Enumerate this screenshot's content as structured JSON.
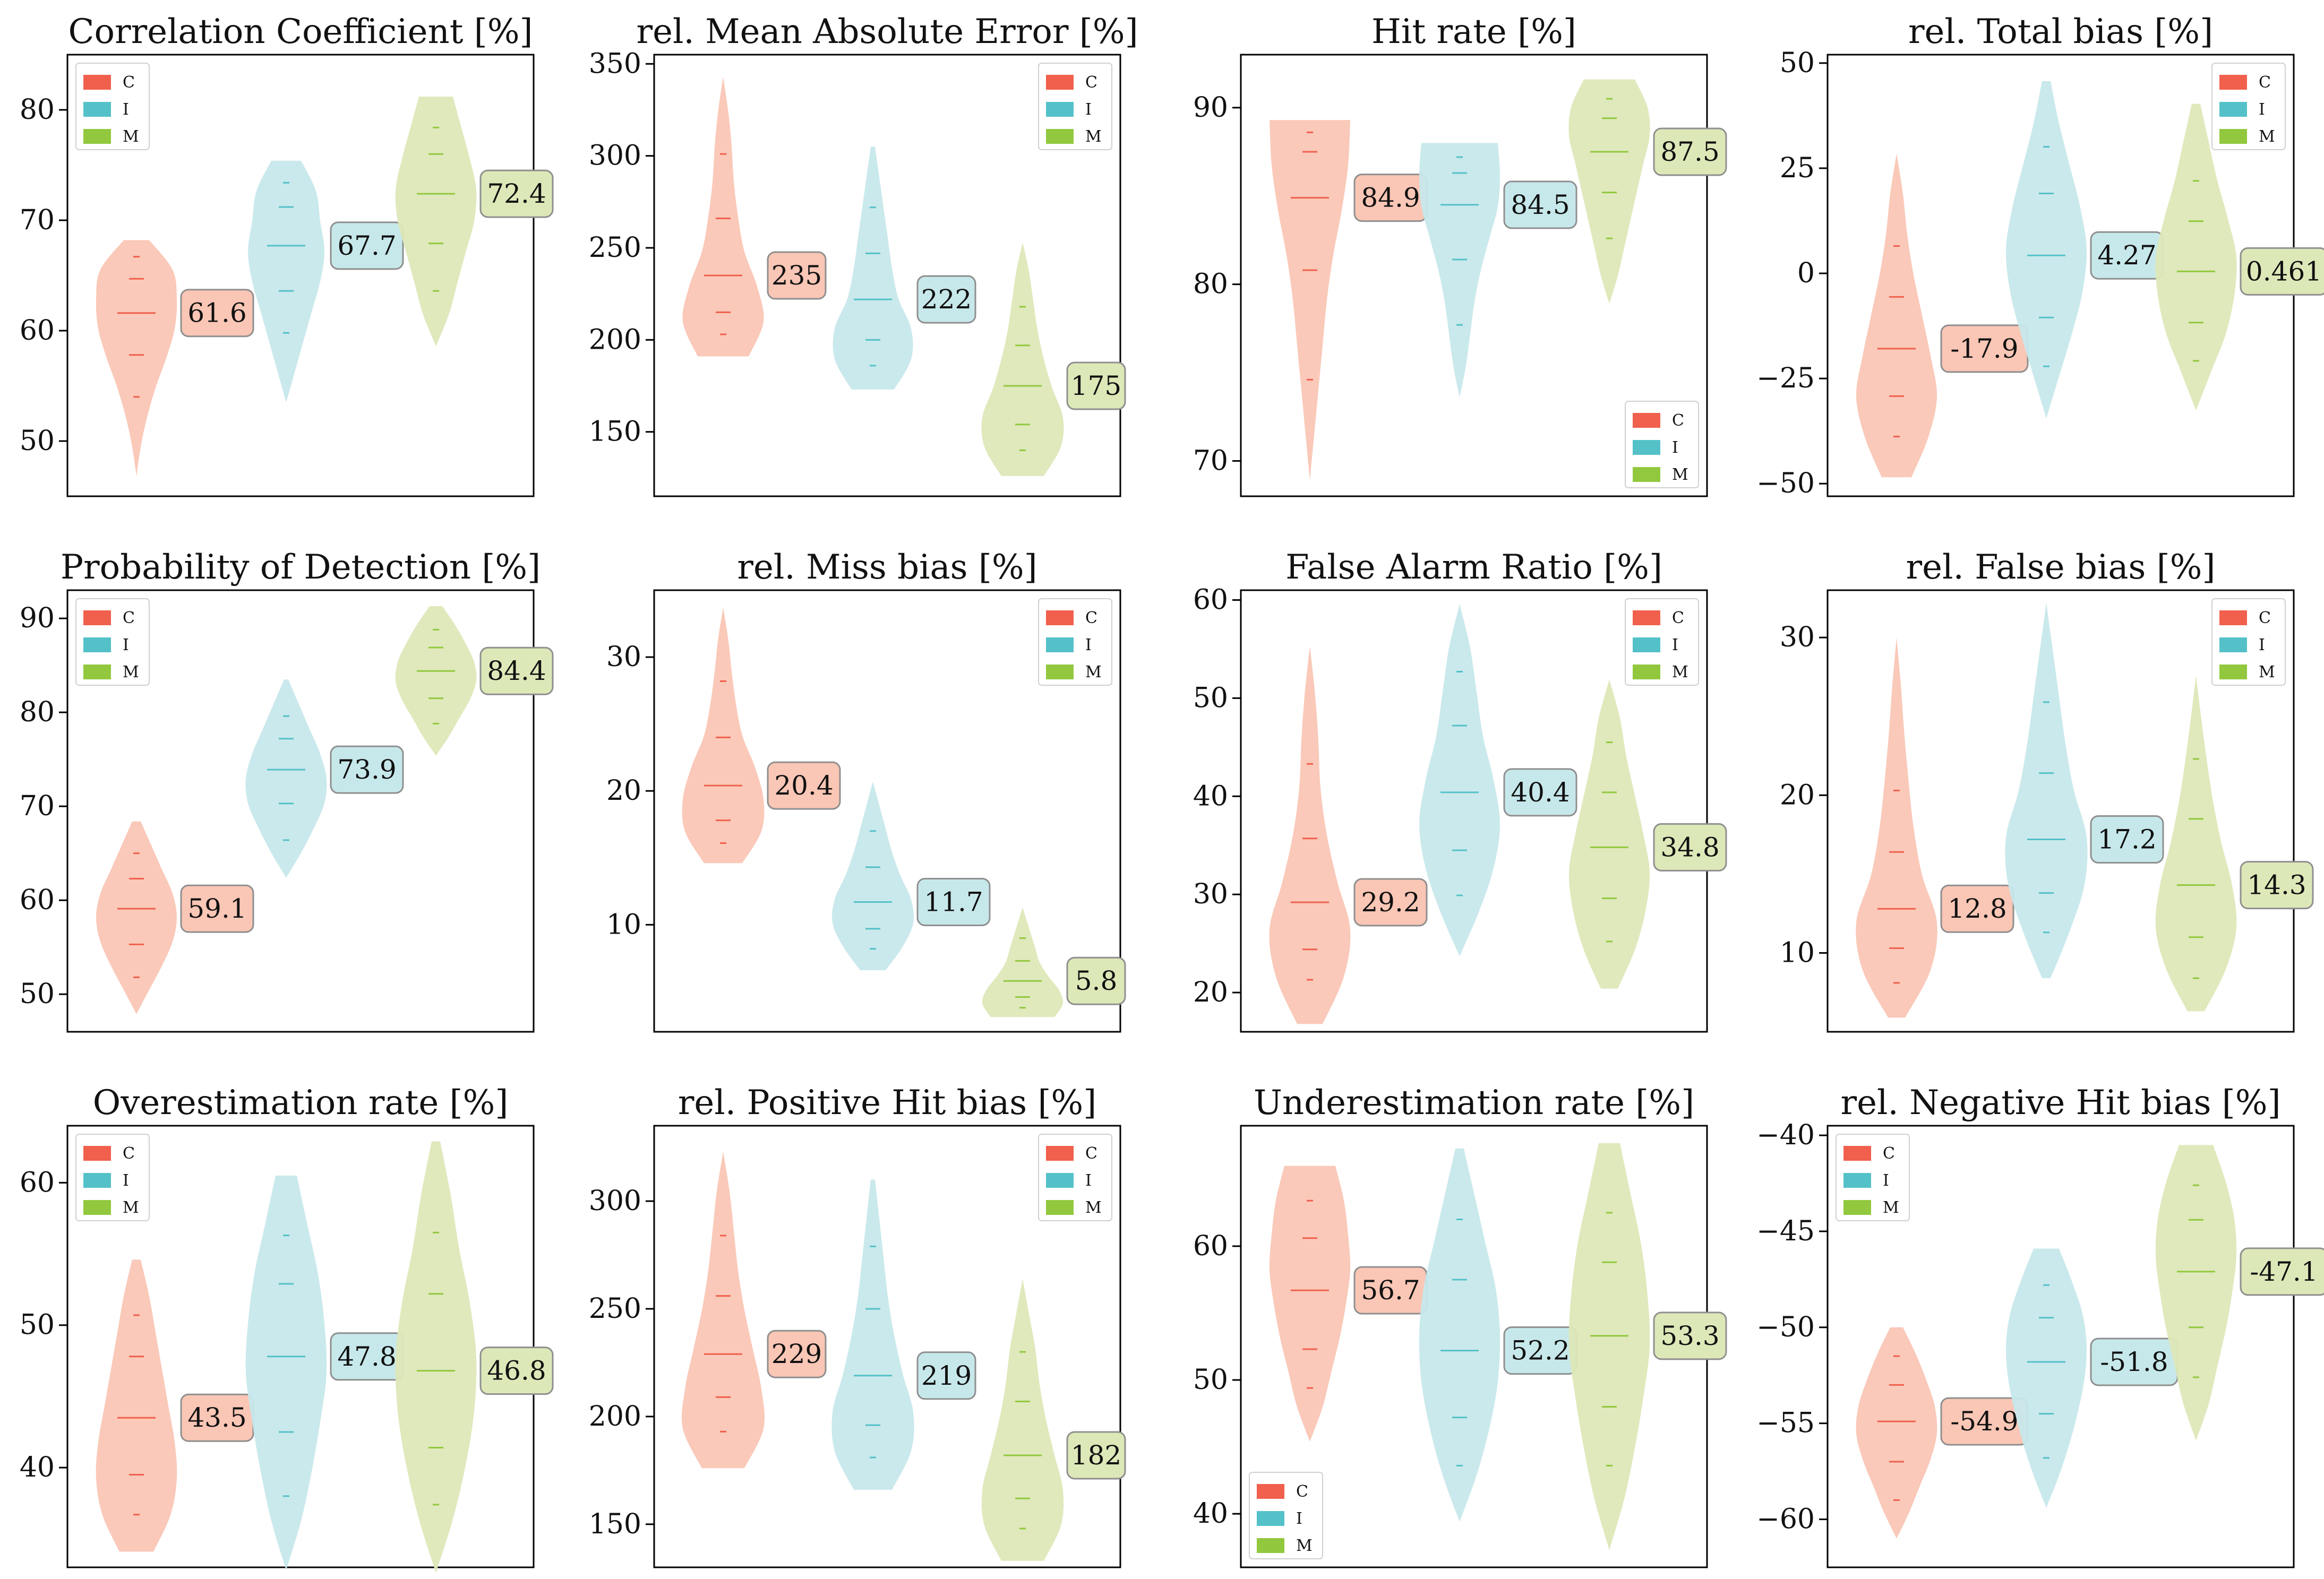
{
  "colors": {
    "C": "#f0604d",
    "I": "#54c1c8",
    "M": "#92c83e"
  },
  "fills": {
    "C": "#fac6b5",
    "I": "#c7e8eb",
    "M": "#dde8b8"
  },
  "chart_data": [
    {
      "type": "violin",
      "title": "Correlation Coefficient [%]",
      "ylim": [
        45,
        85
      ],
      "yticks": [
        50,
        60,
        70,
        80
      ],
      "legend": "top-left",
      "series": [
        {
          "name": "C",
          "median": 61.6,
          "label": "61.6",
          "min": 46.8,
          "max": 68.2,
          "widths": [
            0,
            0.1,
            0.25,
            0.45,
            0.7,
            0.9,
            0.95,
            0.85,
            0.3
          ],
          "quantiles": [
            54,
            57.8,
            61.6,
            64.7,
            66.7
          ]
        },
        {
          "name": "I",
          "median": 67.7,
          "label": "67.7",
          "min": 53.5,
          "max": 75.4,
          "widths": [
            0,
            0.2,
            0.4,
            0.6,
            0.8,
            0.9,
            0.8,
            0.7,
            0.35
          ],
          "quantiles": [
            59.8,
            63.6,
            67.7,
            71.2,
            73.4
          ]
        },
        {
          "name": "M",
          "median": 72.4,
          "label": "72.4",
          "min": 58.6,
          "max": 81.2,
          "widths": [
            0,
            0.3,
            0.5,
            0.7,
            0.9,
            0.95,
            0.8,
            0.6,
            0.4
          ],
          "quantiles": [
            63.6,
            67.9,
            72.4,
            76,
            78.4
          ]
        }
      ]
    },
    {
      "type": "violin",
      "title": "rel. Mean Absolute Error [%]",
      "ylim": [
        115,
        355
      ],
      "yticks": [
        150,
        200,
        250,
        300,
        350
      ],
      "legend": "top-right",
      "series": [
        {
          "name": "C",
          "median": 235,
          "label": "235",
          "min": 191,
          "max": 343,
          "widths": [
            0.6,
            0.95,
            0.8,
            0.5,
            0.35,
            0.25,
            0.2,
            0.12,
            0
          ],
          "quantiles": [
            203,
            215,
            235,
            266,
            301
          ]
        },
        {
          "name": "I",
          "median": 222,
          "label": "222",
          "min": 173,
          "max": 305,
          "widths": [
            0.5,
            0.9,
            0.9,
            0.6,
            0.45,
            0.35,
            0.25,
            0.15,
            0.05
          ],
          "quantiles": [
            186,
            200,
            222,
            247,
            272
          ]
        },
        {
          "name": "M",
          "median": 175,
          "label": "175",
          "min": 126,
          "max": 253,
          "widths": [
            0.5,
            0.9,
            0.95,
            0.7,
            0.5,
            0.35,
            0.25,
            0.15,
            0
          ],
          "quantiles": [
            140,
            154,
            175,
            197,
            218
          ]
        }
      ]
    },
    {
      "type": "violin",
      "title": "Hit rate [%]",
      "ylim": [
        68,
        93
      ],
      "yticks": [
        70,
        80,
        90
      ],
      "legend": "bottom-right",
      "series": [
        {
          "name": "C",
          "median": 84.9,
          "label": "84.9",
          "min": 68.9,
          "max": 89.3,
          "widths": [
            0,
            0.1,
            0.2,
            0.3,
            0.4,
            0.55,
            0.75,
            0.9,
            0.95
          ],
          "quantiles": [
            74.6,
            80.8,
            84.9,
            87.5,
            88.6
          ]
        },
        {
          "name": "I",
          "median": 84.5,
          "label": "84.5",
          "min": 73.6,
          "max": 88,
          "widths": [
            0,
            0.15,
            0.25,
            0.35,
            0.5,
            0.7,
            0.9,
            0.95,
            0.9
          ],
          "quantiles": [
            77.7,
            81.4,
            84.5,
            86.3,
            87.2
          ]
        },
        {
          "name": "M",
          "median": 87.5,
          "label": "87.5",
          "min": 78.9,
          "max": 91.6,
          "widths": [
            0,
            0.2,
            0.35,
            0.5,
            0.65,
            0.8,
            0.95,
            0.9,
            0.6
          ],
          "quantiles": [
            82.6,
            85.2,
            87.5,
            89.4,
            90.5
          ]
        }
      ]
    },
    {
      "type": "violin",
      "title": "rel. Total bias [%]",
      "ylim": [
        -53,
        52
      ],
      "yticks": [
        -50,
        -25,
        0,
        25,
        50
      ],
      "legend": "top-right",
      "series": [
        {
          "name": "C",
          "median": -17.9,
          "label": "-17.9",
          "min": -48.5,
          "max": 28.5,
          "widths": [
            0.35,
            0.75,
            0.95,
            0.8,
            0.6,
            0.4,
            0.25,
            0.15,
            0
          ],
          "quantiles": [
            -38.8,
            -29.2,
            -17.9,
            -5.6,
            6.5
          ]
        },
        {
          "name": "I",
          "median": 4.27,
          "label": "4.27",
          "min": -34.5,
          "max": 45.7,
          "widths": [
            0,
            0.3,
            0.6,
            0.85,
            0.95,
            0.8,
            0.55,
            0.3,
            0.1
          ],
          "quantiles": [
            -22.1,
            -10.5,
            4.27,
            19,
            30.1
          ]
        },
        {
          "name": "M",
          "median": 0.461,
          "label": "0.461",
          "min": -32.6,
          "max": 40.3,
          "widths": [
            0,
            0.35,
            0.7,
            0.9,
            0.95,
            0.75,
            0.5,
            0.3,
            0.1
          ],
          "quantiles": [
            -20.8,
            -11.7,
            0.461,
            12.4,
            22
          ]
        }
      ]
    },
    {
      "type": "violin",
      "title": "Probability of Detection [%]",
      "ylim": [
        46,
        93
      ],
      "yticks": [
        50,
        60,
        70,
        80,
        90
      ],
      "legend": "top-left",
      "series": [
        {
          "name": "C",
          "median": 59.1,
          "label": "59.1",
          "min": 47.9,
          "max": 68.4,
          "widths": [
            0,
            0.3,
            0.6,
            0.85,
            0.95,
            0.85,
            0.6,
            0.35,
            0.1
          ],
          "quantiles": [
            51.8,
            55.3,
            59.1,
            62.3,
            65
          ]
        },
        {
          "name": "I",
          "median": 73.9,
          "label": "73.9",
          "min": 62.4,
          "max": 83.5,
          "widths": [
            0,
            0.35,
            0.65,
            0.9,
            0.95,
            0.8,
            0.55,
            0.3,
            0.05
          ],
          "quantiles": [
            66.4,
            70.3,
            73.9,
            77.2,
            79.6
          ]
        },
        {
          "name": "M",
          "median": 84.4,
          "label": "84.4",
          "min": 75.4,
          "max": 91.3,
          "widths": [
            0,
            0.3,
            0.55,
            0.8,
            0.95,
            0.9,
            0.7,
            0.45,
            0.15
          ],
          "quantiles": [
            78.8,
            81.5,
            84.4,
            86.9,
            88.8
          ]
        }
      ]
    },
    {
      "type": "violin",
      "title": "rel. Miss bias [%]",
      "ylim": [
        2,
        35
      ],
      "yticks": [
        10,
        20,
        30
      ],
      "legend": "top-right",
      "series": [
        {
          "name": "C",
          "median": 20.4,
          "label": "20.4",
          "min": 14.6,
          "max": 33.7,
          "widths": [
            0.45,
            0.9,
            0.95,
            0.75,
            0.45,
            0.3,
            0.2,
            0.12,
            0
          ],
          "quantiles": [
            16.1,
            17.8,
            20.4,
            24,
            28.2
          ]
        },
        {
          "name": "I",
          "median": 11.7,
          "label": "11.7",
          "min": 6.6,
          "max": 20.7,
          "widths": [
            0.3,
            0.7,
            0.95,
            0.9,
            0.65,
            0.45,
            0.3,
            0.15,
            0
          ],
          "quantiles": [
            8.2,
            9.7,
            11.7,
            14.3,
            17
          ]
        },
        {
          "name": "M",
          "median": 5.8,
          "label": "5.8",
          "min": 3.1,
          "max": 11.3,
          "widths": [
            0.75,
            0.95,
            0.85,
            0.6,
            0.4,
            0.3,
            0.2,
            0.1,
            0
          ],
          "quantiles": [
            3.8,
            4.6,
            5.8,
            7.3,
            9
          ]
        }
      ]
    },
    {
      "type": "violin",
      "title": "False Alarm Ratio [%]",
      "ylim": [
        16,
        61
      ],
      "yticks": [
        20,
        30,
        40,
        50,
        60
      ],
      "legend": "top-right",
      "series": [
        {
          "name": "C",
          "median": 29.2,
          "label": "29.2",
          "min": 16.8,
          "max": 55.3,
          "widths": [
            0.3,
            0.8,
            0.95,
            0.65,
            0.4,
            0.25,
            0.2,
            0.12,
            0
          ],
          "quantiles": [
            21.3,
            24.4,
            29.2,
            35.7,
            43.3
          ]
        },
        {
          "name": "I",
          "median": 40.4,
          "label": "40.4",
          "min": 23.7,
          "max": 59.6,
          "widths": [
            0,
            0.45,
            0.8,
            0.95,
            0.8,
            0.55,
            0.4,
            0.25,
            0
          ],
          "quantiles": [
            29.9,
            34.5,
            40.4,
            47.2,
            52.7
          ]
        },
        {
          "name": "M",
          "median": 34.8,
          "label": "34.8",
          "min": 20.4,
          "max": 51.9,
          "widths": [
            0.2,
            0.6,
            0.85,
            0.95,
            0.8,
            0.6,
            0.4,
            0.25,
            0
          ],
          "quantiles": [
            25.2,
            29.6,
            34.8,
            40.4,
            45.5
          ]
        }
      ]
    },
    {
      "type": "violin",
      "title": "rel. False bias [%]",
      "ylim": [
        5,
        33
      ],
      "yticks": [
        10,
        20,
        30
      ],
      "legend": "top-right",
      "series": [
        {
          "name": "C",
          "median": 12.8,
          "label": "12.8",
          "min": 5.9,
          "max": 30,
          "widths": [
            0.2,
            0.8,
            0.95,
            0.6,
            0.4,
            0.28,
            0.18,
            0.1,
            0
          ],
          "quantiles": [
            8.1,
            10.3,
            12.8,
            16.4,
            20.3
          ]
        },
        {
          "name": "I",
          "median": 17.2,
          "label": "17.2",
          "min": 8.4,
          "max": 32.2,
          "widths": [
            0.1,
            0.55,
            0.9,
            0.95,
            0.65,
            0.45,
            0.3,
            0.15,
            0
          ],
          "quantiles": [
            11.3,
            13.8,
            17.2,
            21.4,
            25.9
          ]
        },
        {
          "name": "M",
          "median": 14.3,
          "label": "14.3",
          "min": 6.3,
          "max": 27.6,
          "widths": [
            0.2,
            0.7,
            0.95,
            0.85,
            0.6,
            0.4,
            0.25,
            0.12,
            0
          ],
          "quantiles": [
            8.4,
            11,
            14.3,
            18.5,
            22.3
          ]
        }
      ]
    },
    {
      "type": "violin",
      "title": "Overestimation rate [%]",
      "ylim": [
        33,
        64
      ],
      "yticks": [
        40,
        50,
        60
      ],
      "legend": "top-left",
      "series": [
        {
          "name": "C",
          "median": 43.5,
          "label": "43.5",
          "min": 34.1,
          "max": 54.6,
          "widths": [
            0.4,
            0.8,
            0.95,
            0.9,
            0.75,
            0.6,
            0.45,
            0.3,
            0.1
          ],
          "quantiles": [
            36.7,
            39.5,
            43.5,
            47.8,
            50.7
          ]
        },
        {
          "name": "I",
          "median": 47.8,
          "label": "47.8",
          "min": 32.8,
          "max": 60.5,
          "widths": [
            0,
            0.35,
            0.6,
            0.8,
            0.95,
            0.9,
            0.75,
            0.5,
            0.25
          ],
          "quantiles": [
            38,
            42.5,
            47.8,
            52.9,
            56.3
          ]
        },
        {
          "name": "M",
          "median": 46.8,
          "label": "46.8",
          "min": 32.6,
          "max": 62.9,
          "widths": [
            0,
            0.4,
            0.7,
            0.9,
            0.95,
            0.8,
            0.55,
            0.35,
            0.1
          ],
          "quantiles": [
            37.4,
            41.4,
            46.8,
            52.2,
            56.5
          ]
        }
      ]
    },
    {
      "type": "violin",
      "title": "rel. Positive Hit bias [%]",
      "ylim": [
        130,
        335
      ],
      "yticks": [
        150,
        200,
        250,
        300
      ],
      "legend": "top-right",
      "series": [
        {
          "name": "C",
          "median": 229,
          "label": "229",
          "min": 176,
          "max": 323,
          "widths": [
            0.5,
            0.95,
            0.9,
            0.7,
            0.5,
            0.35,
            0.25,
            0.15,
            0
          ],
          "quantiles": [
            193,
            209,
            229,
            256,
            284
          ]
        },
        {
          "name": "I",
          "median": 219,
          "label": "219",
          "min": 166,
          "max": 310,
          "widths": [
            0.45,
            0.9,
            0.95,
            0.7,
            0.5,
            0.35,
            0.25,
            0.15,
            0.05
          ],
          "quantiles": [
            181,
            196,
            219,
            250,
            279
          ]
        },
        {
          "name": "M",
          "median": 182,
          "label": "182",
          "min": 133,
          "max": 264,
          "widths": [
            0.5,
            0.9,
            0.95,
            0.75,
            0.55,
            0.4,
            0.3,
            0.15,
            0
          ],
          "quantiles": [
            148,
            162,
            182,
            207,
            230
          ]
        }
      ]
    },
    {
      "type": "violin",
      "title": "Underestimation rate [%]",
      "ylim": [
        36,
        69
      ],
      "yticks": [
        40,
        50,
        60
      ],
      "legend": "bottom-left",
      "series": [
        {
          "name": "C",
          "median": 56.7,
          "label": "56.7",
          "min": 45.4,
          "max": 66,
          "widths": [
            0,
            0.3,
            0.5,
            0.7,
            0.85,
            0.95,
            0.9,
            0.8,
            0.6
          ],
          "quantiles": [
            49.4,
            52.3,
            56.7,
            60.6,
            63.4
          ]
        },
        {
          "name": "I",
          "median": 52.2,
          "label": "52.2",
          "min": 39.4,
          "max": 67.3,
          "widths": [
            0,
            0.4,
            0.7,
            0.9,
            0.95,
            0.85,
            0.6,
            0.35,
            0.1
          ],
          "quantiles": [
            43.6,
            47.2,
            52.2,
            57.5,
            62
          ]
        },
        {
          "name": "M",
          "median": 53.3,
          "label": "53.3",
          "min": 37.3,
          "max": 67.7,
          "widths": [
            0,
            0.35,
            0.6,
            0.8,
            0.95,
            0.9,
            0.75,
            0.5,
            0.25
          ],
          "quantiles": [
            43.6,
            48,
            53.3,
            58.8,
            62.5
          ]
        }
      ]
    },
    {
      "type": "violin",
      "title": "rel. Negative Hit bias [%]",
      "ylim": [
        -62.5,
        -39.5
      ],
      "yticks": [
        -60,
        -55,
        -50,
        -45,
        -40
      ],
      "legend": "top-left",
      "series": [
        {
          "name": "C",
          "median": -54.9,
          "label": "-54.9",
          "min": -61,
          "max": -50,
          "widths": [
            0,
            0.3,
            0.55,
            0.8,
            0.95,
            0.9,
            0.7,
            0.45,
            0.15
          ],
          "quantiles": [
            -59,
            -57,
            -54.9,
            -53,
            -51.5
          ]
        },
        {
          "name": "I",
          "median": -51.8,
          "label": "-51.8",
          "min": -59.4,
          "max": -45.9,
          "widths": [
            0,
            0.3,
            0.55,
            0.75,
            0.9,
            0.95,
            0.85,
            0.6,
            0.3
          ],
          "quantiles": [
            -56.8,
            -54.5,
            -51.8,
            -49.5,
            -47.8
          ]
        },
        {
          "name": "M",
          "median": -47.1,
          "label": "-47.1",
          "min": -55.9,
          "max": -40.5,
          "widths": [
            0,
            0.3,
            0.5,
            0.7,
            0.85,
            0.95,
            0.9,
            0.7,
            0.4
          ],
          "quantiles": [
            -52.6,
            -50,
            -47.1,
            -44.4,
            -42.6
          ]
        }
      ]
    }
  ]
}
